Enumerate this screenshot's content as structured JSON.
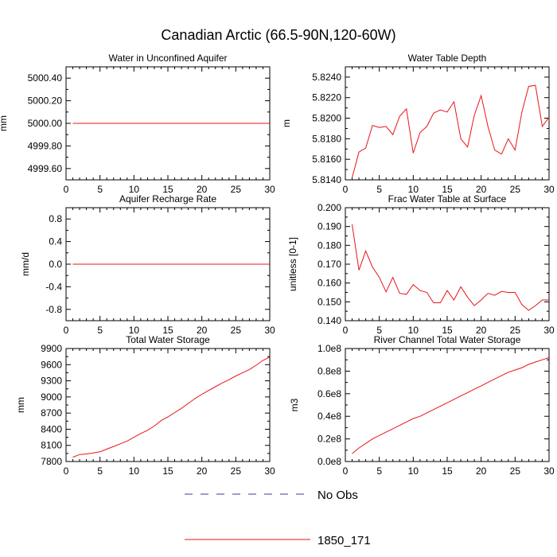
{
  "figure": {
    "title": "Canadian Arctic (66.5-90N,120-60W)"
  },
  "legend": [
    {
      "name": "No Obs",
      "color": "#3a3aa0",
      "dashed": true
    },
    {
      "name": "1850_171",
      "color": "#e8141a",
      "dashed": false
    }
  ],
  "chart_data": [
    {
      "type": "line",
      "title": "Water in Unconfined Aquifer",
      "xlabel": "",
      "ylabel": "mm",
      "xlim": [
        0,
        30
      ],
      "ylim": [
        4999.5,
        5000.5
      ],
      "xticks": [
        0,
        5,
        10,
        15,
        20,
        25,
        30
      ],
      "yticks": [
        4999.6,
        4999.8,
        5000.0,
        5000.2,
        5000.4
      ],
      "ytick_labels": [
        "4999.60",
        "4999.80",
        "5000.00",
        "5000.20",
        "5000.40"
      ],
      "series": [
        {
          "name": "1850_171",
          "color": "#e8141a",
          "x": [
            1,
            2,
            3,
            4,
            5,
            6,
            7,
            8,
            9,
            10,
            11,
            12,
            13,
            14,
            15,
            16,
            17,
            18,
            19,
            20,
            21,
            22,
            23,
            24,
            25,
            26,
            27,
            28,
            29,
            30
          ],
          "y": [
            5000,
            5000,
            5000,
            5000,
            5000,
            5000,
            5000,
            5000,
            5000,
            5000,
            5000,
            5000,
            5000,
            5000,
            5000,
            5000,
            5000,
            5000,
            5000,
            5000,
            5000,
            5000,
            5000,
            5000,
            5000,
            5000,
            5000,
            5000,
            5000,
            5000
          ]
        }
      ]
    },
    {
      "type": "line",
      "title": "Water Table Depth",
      "xlabel": "",
      "ylabel": "m",
      "xlim": [
        0,
        30
      ],
      "ylim": [
        5.814,
        5.825
      ],
      "xticks": [
        0,
        5,
        10,
        15,
        20,
        25,
        30
      ],
      "yticks": [
        5.814,
        5.816,
        5.818,
        5.82,
        5.822,
        5.824
      ],
      "ytick_labels": [
        "5.8140",
        "5.8160",
        "5.8180",
        "5.8200",
        "5.8220",
        "5.8240"
      ],
      "series": [
        {
          "name": "1850_171",
          "color": "#e8141a",
          "x": [
            1,
            2,
            3,
            4,
            5,
            6,
            7,
            8,
            9,
            10,
            11,
            12,
            13,
            14,
            15,
            16,
            17,
            18,
            19,
            20,
            21,
            22,
            23,
            24,
            25,
            26,
            27,
            28,
            29,
            30
          ],
          "y": [
            5.8142,
            5.8167,
            5.8171,
            5.8193,
            5.8191,
            5.8192,
            5.8184,
            5.8202,
            5.8209,
            5.8166,
            5.8186,
            5.8192,
            5.8205,
            5.8208,
            5.8206,
            5.8216,
            5.818,
            5.8172,
            5.8203,
            5.8222,
            5.8192,
            5.8169,
            5.8165,
            5.818,
            5.8169,
            5.8206,
            5.8231,
            5.8232,
            5.8192,
            5.8201
          ]
        }
      ]
    },
    {
      "type": "line",
      "title": "Aquifer Recharge Rate",
      "xlabel": "",
      "ylabel": "mm/d",
      "xlim": [
        0,
        30
      ],
      "ylim": [
        -1.0,
        1.0
      ],
      "xticks": [
        0,
        5,
        10,
        15,
        20,
        25,
        30
      ],
      "yticks": [
        -0.8,
        -0.4,
        0.0,
        0.4,
        0.8
      ],
      "ytick_labels": [
        "-0.8",
        "-0.4",
        "0.0",
        "0.4",
        "0.8"
      ],
      "series": [
        {
          "name": "1850_171",
          "color": "#e8141a",
          "x": [
            1,
            2,
            3,
            4,
            5,
            6,
            7,
            8,
            9,
            10,
            11,
            12,
            13,
            14,
            15,
            16,
            17,
            18,
            19,
            20,
            21,
            22,
            23,
            24,
            25,
            26,
            27,
            28,
            29,
            30
          ],
          "y": [
            0,
            0,
            0,
            0,
            0,
            0,
            0,
            0,
            0,
            0,
            0,
            0,
            0,
            0,
            0,
            0,
            0,
            0,
            0,
            0,
            0,
            0,
            0,
            0,
            0,
            0,
            0,
            0,
            0,
            0
          ]
        }
      ]
    },
    {
      "type": "line",
      "title": "Frac Water Table at Surface",
      "xlabel": "",
      "ylabel": "unitless [0-1]",
      "xlim": [
        0,
        30
      ],
      "ylim": [
        0.14,
        0.2
      ],
      "xticks": [
        0,
        5,
        10,
        15,
        20,
        25,
        30
      ],
      "yticks": [
        0.14,
        0.15,
        0.16,
        0.17,
        0.18,
        0.19,
        0.2
      ],
      "ytick_labels": [
        "0.140",
        "0.150",
        "0.160",
        "0.170",
        "0.180",
        "0.190",
        "0.200"
      ],
      "series": [
        {
          "name": "1850_171",
          "color": "#e8141a",
          "x": [
            1,
            2,
            3,
            4,
            5,
            6,
            7,
            8,
            9,
            10,
            11,
            12,
            13,
            14,
            15,
            16,
            17,
            18,
            19,
            20,
            21,
            22,
            23,
            24,
            25,
            26,
            27,
            28,
            29,
            30
          ],
          "y": [
            0.1912,
            0.1668,
            0.177,
            0.1685,
            0.163,
            0.1553,
            0.163,
            0.1545,
            0.154,
            0.1592,
            0.156,
            0.155,
            0.1495,
            0.1495,
            0.156,
            0.151,
            0.158,
            0.1525,
            0.148,
            0.151,
            0.1545,
            0.1535,
            0.1555,
            0.155,
            0.155,
            0.1485,
            0.1455,
            0.148,
            0.151,
            0.151
          ]
        }
      ]
    },
    {
      "type": "line",
      "title": "Total Water Storage",
      "xlabel": "",
      "ylabel": "mm",
      "xlim": [
        0,
        30
      ],
      "ylim": [
        7800,
        9900
      ],
      "xticks": [
        0,
        5,
        10,
        15,
        20,
        25,
        30
      ],
      "yticks": [
        7800,
        8100,
        8400,
        8700,
        9000,
        9300,
        9600,
        9900
      ],
      "ytick_labels": [
        "7800",
        "8100",
        "8400",
        "8700",
        "9000",
        "9300",
        "9600",
        "9900"
      ],
      "series": [
        {
          "name": "1850_171",
          "color": "#e8141a",
          "x": [
            1,
            2,
            3,
            4,
            5,
            6,
            7,
            8,
            9,
            10,
            11,
            12,
            13,
            14,
            15,
            16,
            17,
            18,
            19,
            20,
            21,
            22,
            23,
            24,
            25,
            26,
            27,
            28,
            29,
            30
          ],
          "y": [
            7880,
            7930,
            7940,
            7960,
            7980,
            8030,
            8080,
            8130,
            8180,
            8250,
            8320,
            8380,
            8460,
            8560,
            8630,
            8710,
            8790,
            8880,
            8970,
            9050,
            9120,
            9190,
            9260,
            9320,
            9390,
            9450,
            9510,
            9590,
            9680,
            9740
          ]
        }
      ]
    },
    {
      "type": "line",
      "title": "River Channel Total Water Storage",
      "xlabel": "",
      "ylabel": "m3",
      "xlim": [
        0,
        30
      ],
      "ylim": [
        0,
        100000000
      ],
      "xticks": [
        0,
        5,
        10,
        15,
        20,
        25,
        30
      ],
      "yticks": [
        0,
        20000000,
        40000000,
        60000000,
        80000000,
        100000000
      ],
      "ytick_labels": [
        "0.0e8",
        "0.2e8",
        "0.4e8",
        "0.6e8",
        "0.8e8",
        "1.0e8"
      ],
      "series": [
        {
          "name": "1850_171",
          "color": "#e8141a",
          "x": [
            1,
            2,
            3,
            4,
            5,
            6,
            7,
            8,
            9,
            10,
            11,
            12,
            13,
            14,
            15,
            16,
            17,
            18,
            19,
            20,
            21,
            22,
            23,
            24,
            25,
            26,
            27,
            28,
            29,
            30
          ],
          "y": [
            7000000,
            12000000,
            16000000,
            20000000,
            23000000,
            26000000,
            29000000,
            32000000,
            35000000,
            38000000,
            40000000,
            43000000,
            46000000,
            49000000,
            52000000,
            55000000,
            58000000,
            61000000,
            64000000,
            67000000,
            70000000,
            73000000,
            76000000,
            79000000,
            81000000,
            83000000,
            86000000,
            88000000,
            90000000,
            92000000
          ]
        }
      ]
    }
  ]
}
